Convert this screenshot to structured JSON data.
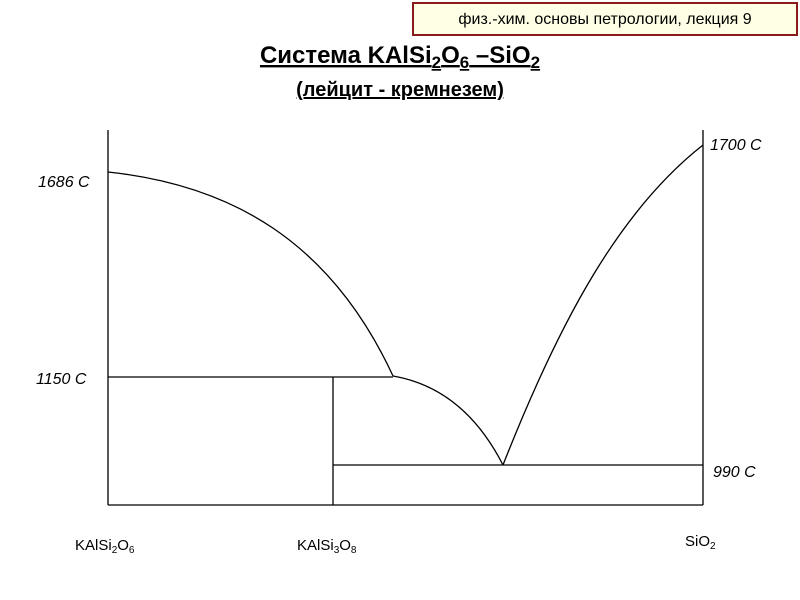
{
  "header": {
    "label": "физ.-хим. основы петрологии, лекция 9"
  },
  "title": {
    "segments": [
      "Система KAlSi",
      "2",
      "O",
      "6",
      " –SiO",
      "2"
    ]
  },
  "subtitle": "(лейцит - кремнезем)",
  "temperatures": {
    "left_top": "1686 C",
    "left_eutectic": "1150 C",
    "right_top": "1700 C",
    "right_eutectic": "990 C"
  },
  "components": [
    {
      "segments": [
        "KAlSi",
        "2",
        "O",
        "6"
      ]
    },
    {
      "segments": [
        "KAlSi",
        "3",
        "O",
        "8"
      ]
    },
    {
      "segments": [
        "SiO",
        "2"
      ]
    }
  ]
}
